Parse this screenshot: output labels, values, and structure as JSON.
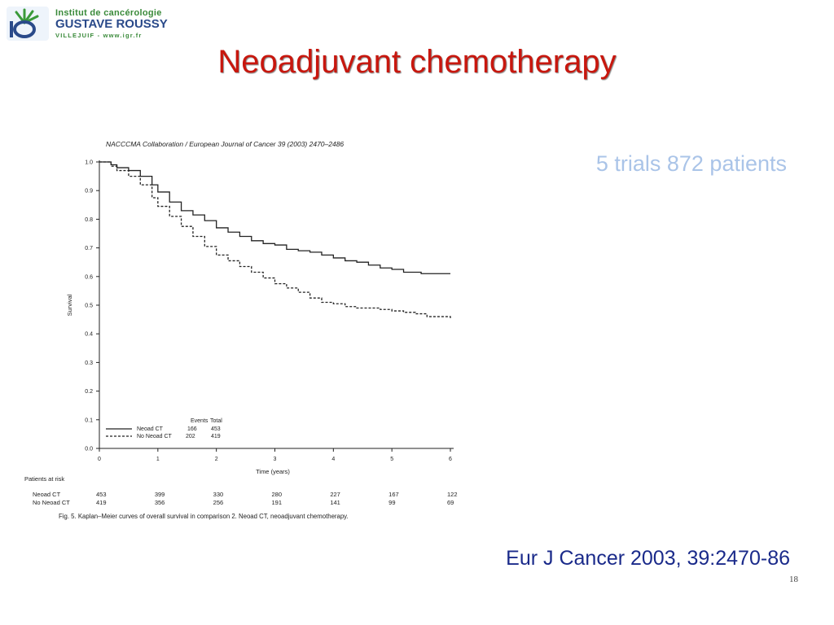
{
  "logo": {
    "line1": "Institut de cancérologie",
    "line2": "GUSTAVE ROUSSY",
    "line3": "VILLEJUIF - www.igr.fr"
  },
  "slide": {
    "title": "Neoadjuvant chemotherapy",
    "trials_note": "5 trials 872 patients",
    "citation": "Eur J Cancer 2003, 39:2470-86",
    "page_number": "18"
  },
  "figure": {
    "journal_header": "NACCCMA Collaboration / European Journal of Cancer 39 (2003) 2470–2486",
    "caption": "Fig. 5.  Kaplan–Meier curves of overall survival in comparison 2. Neoad CT, neoadjuvant chemotherapy.",
    "risk_title": "Patients at risk",
    "risk_rows": [
      {
        "label": "Neoad CT",
        "values": [
          "453",
          "399",
          "330",
          "280",
          "227",
          "167",
          "122"
        ]
      },
      {
        "label": "No Neoad CT",
        "values": [
          "419",
          "356",
          "256",
          "191",
          "141",
          "99",
          "69"
        ]
      }
    ],
    "legend": {
      "events_header": "Events",
      "total_header": "Total",
      "rows": [
        {
          "label": "Neoad CT",
          "events": "166",
          "total": "453"
        },
        {
          "label": "No Neoad CT",
          "events": "202",
          "total": "419"
        }
      ]
    }
  },
  "chart_data": {
    "type": "line",
    "xlabel": "Time (years)",
    "ylabel": "Survival",
    "xlim": [
      0,
      6
    ],
    "ylim": [
      0,
      1
    ],
    "xticks": [
      "0",
      "1",
      "2",
      "3",
      "4",
      "5",
      "6"
    ],
    "yticks": [
      "0.0",
      "0.1",
      "0.2",
      "0.3",
      "0.4",
      "0.5",
      "0.6",
      "0.7",
      "0.8",
      "0.9",
      "1.0"
    ],
    "grid": false,
    "legend_position": "bottom-left",
    "series": [
      {
        "name": "Neoad CT",
        "style": "solid",
        "x": [
          0,
          0.2,
          0.3,
          0.5,
          0.7,
          0.9,
          1.0,
          1.2,
          1.4,
          1.6,
          1.8,
          2.0,
          2.2,
          2.4,
          2.6,
          2.8,
          3.0,
          3.2,
          3.4,
          3.6,
          3.8,
          4.0,
          4.2,
          4.4,
          4.6,
          4.8,
          5.0,
          5.2,
          5.5,
          6.0
        ],
        "y": [
          1.0,
          0.99,
          0.98,
          0.97,
          0.95,
          0.92,
          0.895,
          0.86,
          0.83,
          0.815,
          0.795,
          0.77,
          0.755,
          0.74,
          0.725,
          0.715,
          0.71,
          0.695,
          0.69,
          0.685,
          0.675,
          0.665,
          0.655,
          0.65,
          0.64,
          0.63,
          0.625,
          0.615,
          0.61,
          0.61
        ]
      },
      {
        "name": "No Neoad CT",
        "style": "dashed",
        "x": [
          0,
          0.2,
          0.3,
          0.5,
          0.7,
          0.9,
          1.0,
          1.2,
          1.4,
          1.6,
          1.8,
          2.0,
          2.2,
          2.4,
          2.6,
          2.8,
          3.0,
          3.2,
          3.4,
          3.6,
          3.8,
          4.0,
          4.2,
          4.4,
          4.6,
          4.8,
          5.0,
          5.2,
          5.4,
          5.6,
          6.0
        ],
        "y": [
          1.0,
          0.985,
          0.97,
          0.95,
          0.92,
          0.875,
          0.845,
          0.81,
          0.775,
          0.74,
          0.705,
          0.675,
          0.655,
          0.635,
          0.615,
          0.595,
          0.575,
          0.56,
          0.545,
          0.525,
          0.51,
          0.505,
          0.495,
          0.49,
          0.49,
          0.485,
          0.48,
          0.475,
          0.47,
          0.46,
          0.455
        ]
      }
    ]
  }
}
